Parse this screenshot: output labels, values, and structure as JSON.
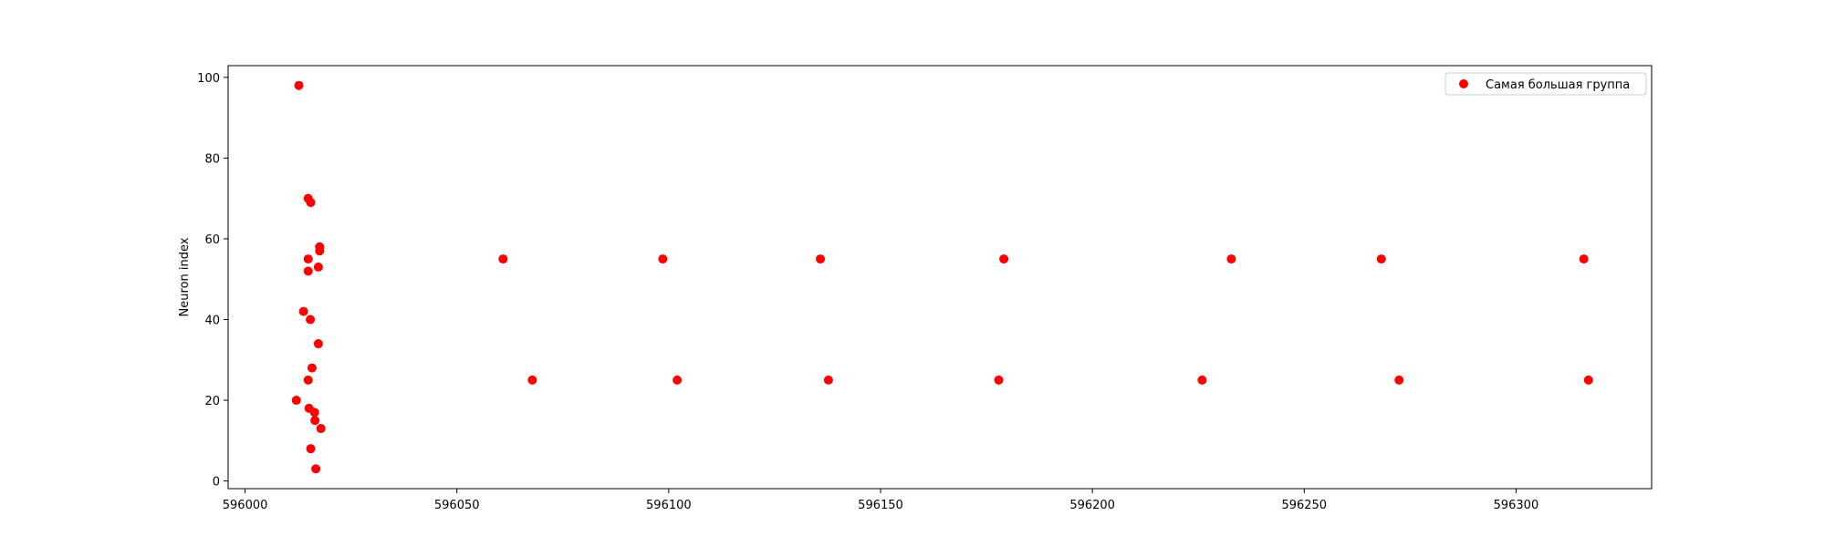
{
  "chart_data": {
    "type": "scatter",
    "title": "",
    "xlabel": "",
    "ylabel": "Neuron index",
    "xlim": [
      595996,
      596332
    ],
    "ylim": [
      -1.9,
      102.9
    ],
    "xticks": [
      596000,
      596050,
      596100,
      596150,
      596200,
      596250,
      596300
    ],
    "xtick_labels": [
      "596000",
      "596050",
      "596100",
      "596150",
      "596200",
      "596250",
      "596300"
    ],
    "yticks": [
      0,
      20,
      40,
      60,
      80,
      100
    ],
    "ytick_labels": [
      "0",
      "20",
      "40",
      "60",
      "80",
      "100"
    ],
    "grid": false,
    "legend_position": "top-right",
    "marker_color": "#ff0000",
    "series": [
      {
        "name": "Самая большая группа",
        "points": [
          {
            "x": 596012.7,
            "y": 98
          },
          {
            "x": 596014.9,
            "y": 70
          },
          {
            "x": 596015.5,
            "y": 69
          },
          {
            "x": 596017.6,
            "y": 58
          },
          {
            "x": 596017.6,
            "y": 57
          },
          {
            "x": 596014.9,
            "y": 55
          },
          {
            "x": 596017.3,
            "y": 53
          },
          {
            "x": 596014.9,
            "y": 52
          },
          {
            "x": 596013.8,
            "y": 42
          },
          {
            "x": 596015.4,
            "y": 40
          },
          {
            "x": 596017.3,
            "y": 34
          },
          {
            "x": 596015.8,
            "y": 28
          },
          {
            "x": 596014.9,
            "y": 25
          },
          {
            "x": 596012.1,
            "y": 20
          },
          {
            "x": 596015.1,
            "y": 18
          },
          {
            "x": 596016.4,
            "y": 17
          },
          {
            "x": 596016.5,
            "y": 15
          },
          {
            "x": 596017.9,
            "y": 13
          },
          {
            "x": 596015.5,
            "y": 8
          },
          {
            "x": 596016.7,
            "y": 3
          },
          {
            "x": 596060.9,
            "y": 55
          },
          {
            "x": 596098.6,
            "y": 55
          },
          {
            "x": 596135.8,
            "y": 55
          },
          {
            "x": 596179.1,
            "y": 55
          },
          {
            "x": 596232.8,
            "y": 55
          },
          {
            "x": 596268.2,
            "y": 55
          },
          {
            "x": 596316.0,
            "y": 55
          },
          {
            "x": 596067.8,
            "y": 25
          },
          {
            "x": 596102.0,
            "y": 25
          },
          {
            "x": 596137.7,
            "y": 25
          },
          {
            "x": 596177.9,
            "y": 25
          },
          {
            "x": 596225.9,
            "y": 25
          },
          {
            "x": 596272.4,
            "y": 25
          },
          {
            "x": 596317.1,
            "y": 25
          }
        ]
      }
    ]
  }
}
